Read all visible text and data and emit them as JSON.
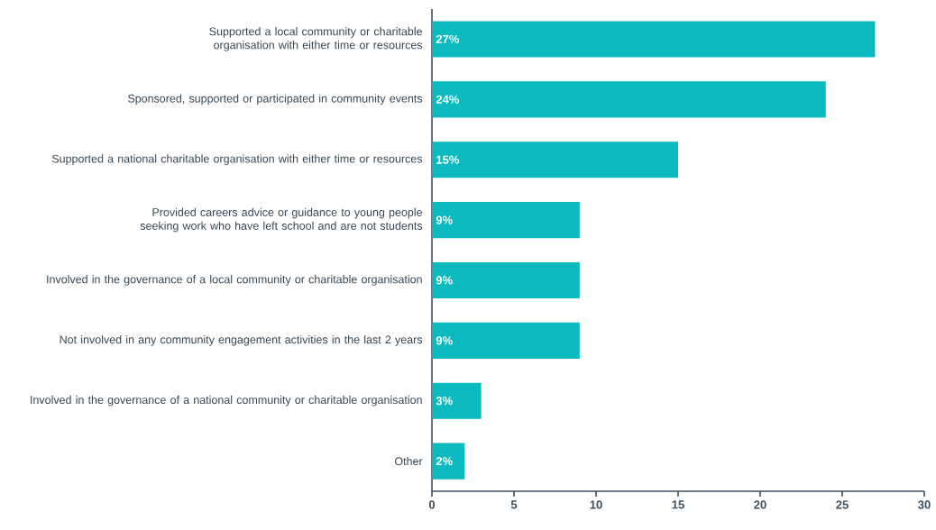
{
  "chart_data": {
    "type": "bar",
    "orientation": "horizontal",
    "categories": [
      "Supported a local community or charitable organisation with either time or resources",
      "Sponsored, supported or participated in community events",
      "Supported a national charitable organisation with either time or resources",
      "Provided careers advice or guidance to young people seeking work who have left school and are not students",
      "Involved in the governance of a local community or charitable organisation",
      "Not involved in any community engagement activities in the last 2 years",
      "Involved in the governance of a national community or charitable organisation",
      "Other"
    ],
    "values": [
      27,
      24,
      15,
      9,
      9,
      9,
      3,
      2
    ],
    "value_labels": [
      "27%",
      "24%",
      "15%",
      "9%",
      "9%",
      "9%",
      "3%",
      "2%"
    ],
    "color": "#0bbabf",
    "xlim": [
      0,
      30
    ],
    "xticks": [
      0,
      5,
      10,
      15,
      20,
      25,
      30
    ]
  }
}
